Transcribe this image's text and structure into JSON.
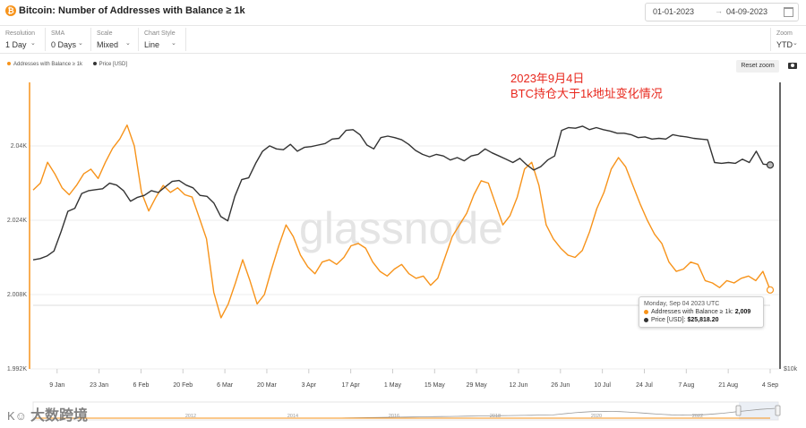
{
  "header": {
    "title": "Bitcoin: Number of Addresses with Balance ≥ 1k",
    "date_from": "01-01-2023",
    "date_to": "04-09-2023"
  },
  "toolbar": {
    "resolution": {
      "label": "Resolution",
      "value": "1 Day"
    },
    "sma": {
      "label": "SMA",
      "value": "0 Days"
    },
    "scale": {
      "label": "Scale",
      "value": "Mixed"
    },
    "chart_style": {
      "label": "Chart Style",
      "value": "Line"
    },
    "zoom": {
      "label": "Zoom",
      "value": "YTD"
    }
  },
  "legend": {
    "series1": "Addresses with Balance ≥ 1k",
    "series2": "Price [USD]"
  },
  "reset_label": "Reset zoom",
  "annotation": {
    "line1": "2023年9月4日",
    "line2": "BTC持仓大于1k地址变化情况"
  },
  "tooltip": {
    "date": "Monday, Sep 04 2023 UTC",
    "s1_label": "Addresses with Balance ≥ 1k:",
    "s1_value": "2,009",
    "s2_label": "Price [USD]:",
    "s2_value": "$25,818.20"
  },
  "chart_watermark": "glassnode",
  "watermark": "大数跨境",
  "colors": {
    "orange": "#f7931a",
    "black": "#333333",
    "grid": "#eeeeee"
  },
  "chart_data": {
    "type": "line",
    "title": "Bitcoin: Number of Addresses with Balance ≥ 1k",
    "x_ticks": [
      "9 Jan",
      "23 Jan",
      "6 Feb",
      "20 Feb",
      "6 Mar",
      "20 Mar",
      "3 Apr",
      "17 Apr",
      "1 May",
      "15 May",
      "29 May",
      "12 Jun",
      "26 Jun",
      "10 Jul",
      "24 Jul",
      "7 Aug",
      "21 Aug",
      "4 Sep"
    ],
    "y_left_ticks": [
      "1.992K",
      "2.008K",
      "2.024K",
      "2.04K"
    ],
    "y_left_range": [
      1992,
      2008,
      2024,
      2040
    ],
    "y_right_ticks": [
      "$10k"
    ],
    "x_start": "2023-01-01",
    "x_end": "2023-09-04",
    "navigator_years": [
      "2012",
      "2014",
      "2016",
      "2018",
      "2020",
      "2022"
    ],
    "series": [
      {
        "name": "Addresses with Balance ≥ 1k",
        "color": "#f7931a",
        "axis": "left",
        "values": [
          2030.5,
          2032.0,
          2036.5,
          2034.0,
          2031.0,
          2029.5,
          2031.5,
          2034.0,
          2035.0,
          2033.0,
          2036.5,
          2039.5,
          2041.5,
          2044.5,
          2040.0,
          2030.0,
          2026.0,
          2029.0,
          2031.5,
          2030.0,
          2031.0,
          2029.5,
          2029.0,
          2024.5,
          2020.0,
          2008.5,
          2003.0,
          2006.0,
          2010.5,
          2015.5,
          2011.0,
          2006.0,
          2008.0,
          2013.5,
          2018.5,
          2023.0,
          2020.5,
          2016.5,
          2014.0,
          2012.5,
          2015.0,
          2015.5,
          2014.5,
          2016.0,
          2018.5,
          2019.0,
          2018.0,
          2015.0,
          2013.0,
          2012.0,
          2013.5,
          2014.5,
          2012.5,
          2011.5,
          2012.0,
          2010.0,
          2011.5,
          2016.0,
          2020.5,
          2023.0,
          2025.5,
          2029.5,
          2032.5,
          2032.0,
          2027.5,
          2023.0,
          2025.0,
          2029.0,
          2035.0,
          2036.5,
          2031.5,
          2023.0,
          2020.0,
          2018.0,
          2016.5,
          2016.0,
          2017.5,
          2021.5,
          2026.5,
          2030.0,
          2035.0,
          2037.5,
          2035.5,
          2031.5,
          2027.5,
          2024.0,
          2021.0,
          2019.0,
          2015.0,
          2013.0,
          2013.5,
          2015.0,
          2014.5,
          2011.0,
          2010.5,
          2009.5,
          2011.0,
          2010.5,
          2011.5,
          2012.0,
          2011.0,
          2013.0,
          2009.0
        ]
      },
      {
        "name": "Price [USD]",
        "color": "#333333",
        "axis": "right",
        "values": [
          16600,
          16700,
          16900,
          17300,
          18900,
          20800,
          21100,
          22600,
          22900,
          23000,
          23100,
          23700,
          23500,
          22900,
          21800,
          22200,
          22400,
          22900,
          22700,
          23300,
          23900,
          24000,
          23500,
          23200,
          22400,
          22300,
          21600,
          20300,
          19900,
          22300,
          24100,
          24300,
          26000,
          27500,
          28200,
          27800,
          27700,
          28400,
          27500,
          28000,
          28100,
          28300,
          28500,
          29100,
          29200,
          30300,
          30400,
          29700,
          28300,
          27800,
          29300,
          29500,
          29300,
          29000,
          28400,
          27600,
          27100,
          26800,
          27100,
          26900,
          26400,
          26700,
          26300,
          26900,
          27100,
          27800,
          27300,
          26900,
          26500,
          26100,
          26600,
          25800,
          25200,
          25600,
          26400,
          26900,
          30300,
          30700,
          30600,
          30900,
          30400,
          30700,
          30400,
          30200,
          29900,
          29900,
          29700,
          29300,
          29400,
          29100,
          29200,
          29100,
          29700,
          29500,
          29400,
          29200,
          29100,
          29000,
          26100,
          26000,
          26100,
          26000,
          26500,
          26100,
          27500,
          25900,
          25800
        ]
      }
    ]
  }
}
